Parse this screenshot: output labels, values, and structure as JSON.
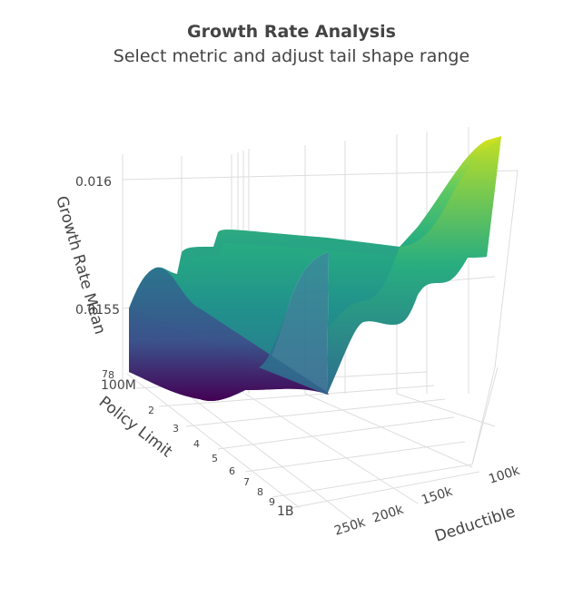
{
  "chart_data": {
    "type": "surface",
    "title": "Growth Rate Analysis",
    "subtitle": "Select metric and adjust tail shape range",
    "colorscale": "viridis",
    "zaxis": {
      "title": "Growth Rate Mean",
      "ticks": [
        "0.016",
        "0.0155"
      ],
      "tick_values": [
        0.016,
        0.0155
      ],
      "range": [
        0.01515,
        0.01625
      ]
    },
    "yaxis": {
      "title": "Policy Limit",
      "ticks": [
        "100M",
        "2",
        "3",
        "4",
        "5",
        "6",
        "7",
        "8",
        "9",
        "1B"
      ],
      "minor_ticks": [
        "7",
        "8"
      ]
    },
    "xaxis": {
      "title": "Deductible",
      "ticks": [
        "100k",
        "150k",
        "200k",
        "250k"
      ]
    },
    "surface_profile": {
      "x": [
        100000,
        125000,
        150000,
        175000,
        200000,
        225000,
        250000
      ],
      "z": [
        0.0162,
        0.01575,
        0.01565,
        0.0156,
        0.01558,
        0.01555,
        0.01515
      ]
    }
  }
}
